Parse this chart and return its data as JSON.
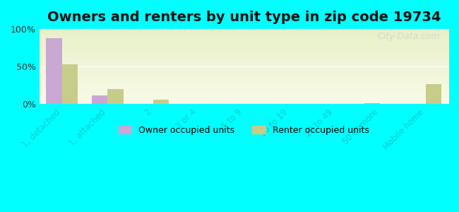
{
  "title": "Owners and renters by unit type in zip code 19734",
  "categories": [
    "1, detached",
    "1, attached",
    "2",
    "3 or 4",
    "5 to 9",
    "10 to 19",
    "20 to 49",
    "50 or more",
    "Mobile home"
  ],
  "owner_values": [
    88,
    11,
    0,
    0,
    0,
    0,
    0,
    1,
    0
  ],
  "renter_values": [
    53,
    20,
    6,
    0,
    0,
    0,
    0,
    0,
    27
  ],
  "owner_color": "#c9a8d4",
  "renter_color": "#c8cc8a",
  "background_color": "#00ffff",
  "plot_bg_color_top": "#e8f0d0",
  "plot_bg_color_bottom": "#f5f8e8",
  "ylim": [
    0,
    100
  ],
  "yticks": [
    0,
    50,
    100
  ],
  "ytick_labels": [
    "0%",
    "50%",
    "100%"
  ],
  "bar_width": 0.35,
  "title_fontsize": 14,
  "legend_labels": [
    "Owner occupied units",
    "Renter occupied units"
  ]
}
